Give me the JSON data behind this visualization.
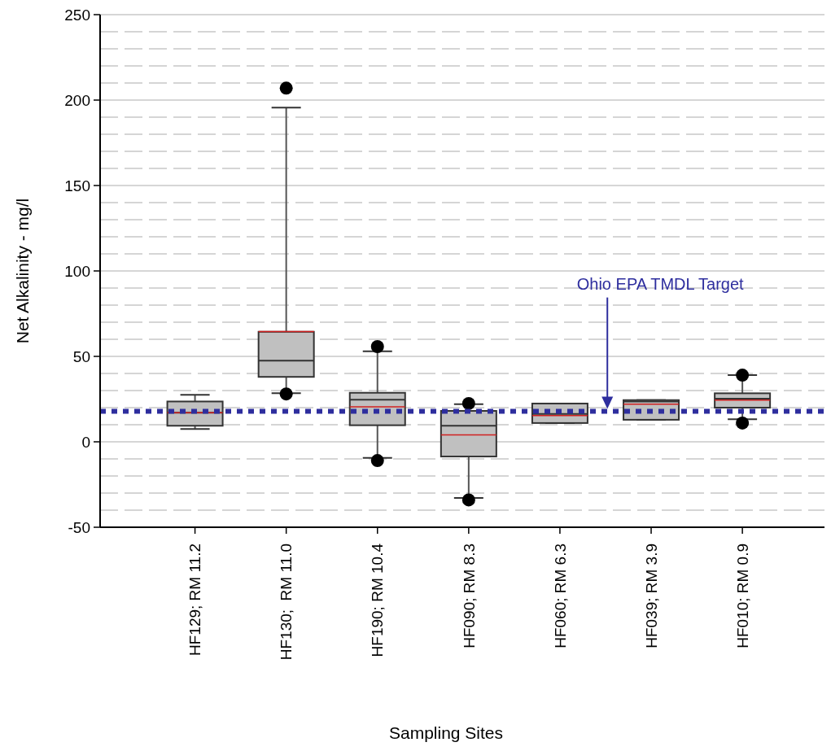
{
  "chart_data": {
    "type": "box",
    "xlabel": "Sampling Sites",
    "ylabel": "Net Alkalinity - mg/l",
    "categories": [
      "HF129; RM 11.2",
      "HF130;  RM 11.0",
      "HF190; RM 10.4",
      "HF090; RM 8.3",
      "HF060; RM 6.3",
      "HF039; RM 3.9",
      "HF010; RM 0.9"
    ],
    "boxes": [
      {
        "low": 7.5,
        "q1": 9.4,
        "median": 17,
        "q3": 23.6,
        "high": 27.5,
        "mean": 17
      },
      {
        "low": 28.4,
        "q1": 38,
        "median": 47.5,
        "q3": 64.4,
        "high": 195.6,
        "mean": 64.5,
        "outliers": [
          207,
          28
        ]
      },
      {
        "low": -9.4,
        "q1": 9.7,
        "median": 24.6,
        "q3": 28.7,
        "high": 53,
        "mean": 20.5,
        "outliers": [
          55.7,
          -11
        ]
      },
      {
        "low": -32.9,
        "q1": -8.6,
        "median": 9.4,
        "q3": 18.1,
        "high": 22,
        "mean": 4,
        "outliers": [
          22.4,
          -34
        ]
      },
      {
        "low": 11,
        "q1": 11,
        "median": 16.3,
        "q3": 22.4,
        "high": 22.4,
        "mean": 15.4
      },
      {
        "low": 12.9,
        "q1": 12.9,
        "median": 23.6,
        "q3": 24.4,
        "high": 24.4,
        "mean": 22
      },
      {
        "low": 13.2,
        "q1": 20,
        "median": 25.2,
        "q3": 28.4,
        "high": 39,
        "mean": 24.4,
        "outliers": [
          39,
          11
        ]
      }
    ],
    "color": "#c0c0c0",
    "ylim": [
      -50,
      250
    ],
    "yticks": [
      -50,
      0,
      50,
      100,
      150,
      200,
      250
    ],
    "grid": "y",
    "ref_lines": [
      {
        "axis": "y",
        "value": 17.8,
        "label": "Ohio EPA TMDL Target",
        "color": "#2e2e9e",
        "line_style": "dotted"
      }
    ]
  }
}
